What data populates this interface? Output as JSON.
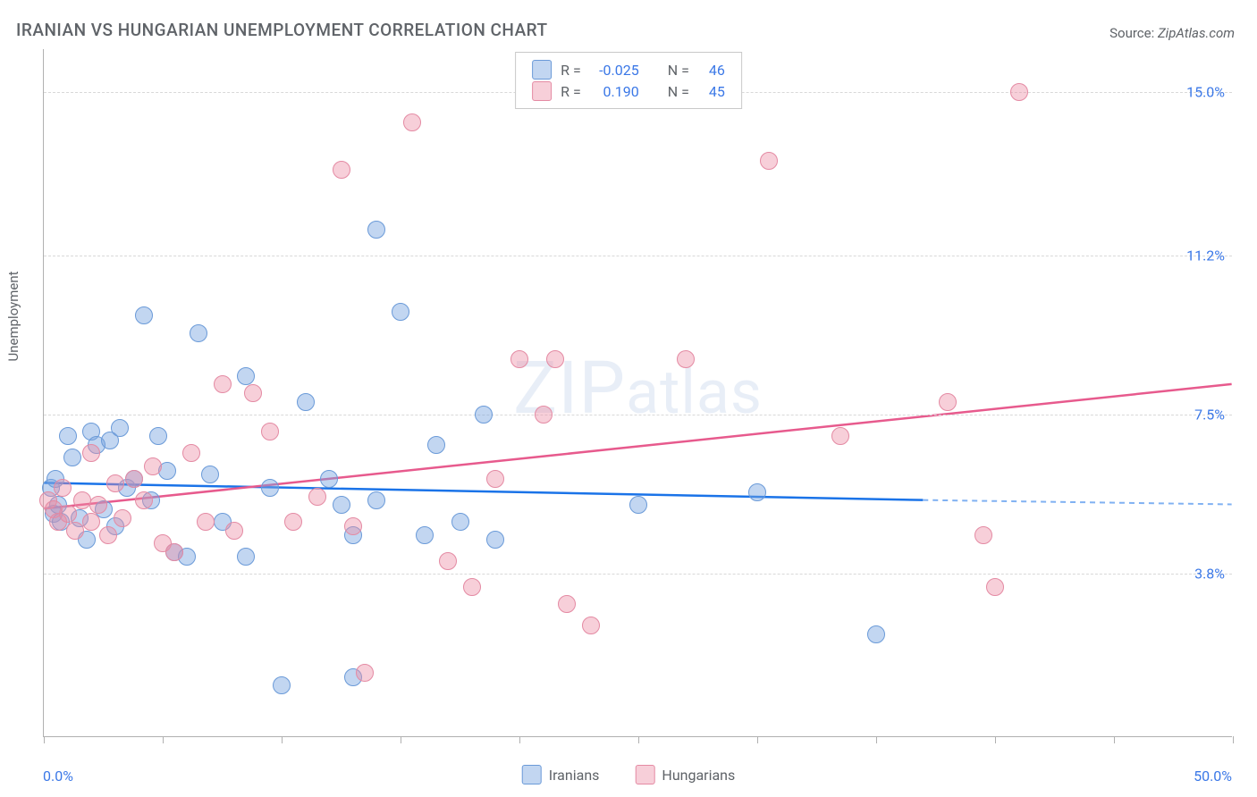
{
  "title": "IRANIAN VS HUNGARIAN UNEMPLOYMENT CORRELATION CHART",
  "source_prefix": "Source: ",
  "source_name": "ZipAtlas.com",
  "y_axis_label": "Unemployment",
  "watermark_big": "ZIP",
  "watermark_small": "atlas",
  "chart": {
    "type": "scatter",
    "xlim": [
      0,
      50
    ],
    "ylim": [
      0,
      16
    ],
    "x_tick_positions": [
      0,
      5,
      10,
      15,
      20,
      25,
      30,
      35,
      40,
      45,
      50
    ],
    "y_gridlines": [
      3.8,
      7.5,
      11.2,
      15.0
    ],
    "y_tick_labels": [
      "3.8%",
      "7.5%",
      "11.2%",
      "15.0%"
    ],
    "x_min_label": "0.0%",
    "x_max_label": "50.0%",
    "background_color": "#ffffff",
    "grid_color": "#d8d8d8",
    "point_radius": 10,
    "series": [
      {
        "name": "Iranians",
        "fill_color": "rgba(120,165,225,0.45)",
        "stroke_color": "#6a9ad8",
        "line_color": "#1a73e8",
        "R": "-0.025",
        "N": "46",
        "trend": {
          "x1": 0,
          "y1": 5.9,
          "x2": 37,
          "y2": 5.5,
          "dash_x1": 37,
          "dash_y1": 5.5,
          "dash_x2": 50,
          "dash_y2": 5.4
        },
        "points": [
          [
            0.3,
            5.8
          ],
          [
            0.4,
            5.2
          ],
          [
            0.5,
            6.0
          ],
          [
            0.6,
            5.4
          ],
          [
            0.7,
            5.0
          ],
          [
            1.0,
            7.0
          ],
          [
            1.2,
            6.5
          ],
          [
            1.5,
            5.1
          ],
          [
            1.8,
            4.6
          ],
          [
            2.0,
            7.1
          ],
          [
            2.2,
            6.8
          ],
          [
            2.5,
            5.3
          ],
          [
            2.8,
            6.9
          ],
          [
            3.0,
            4.9
          ],
          [
            3.2,
            7.2
          ],
          [
            3.5,
            5.8
          ],
          [
            3.8,
            6.0
          ],
          [
            4.2,
            9.8
          ],
          [
            4.5,
            5.5
          ],
          [
            4.8,
            7.0
          ],
          [
            5.2,
            6.2
          ],
          [
            5.5,
            4.3
          ],
          [
            6.0,
            4.2
          ],
          [
            6.5,
            9.4
          ],
          [
            7.0,
            6.1
          ],
          [
            7.5,
            5.0
          ],
          [
            8.5,
            8.4
          ],
          [
            8.5,
            4.2
          ],
          [
            9.5,
            5.8
          ],
          [
            10.0,
            1.2
          ],
          [
            11.0,
            7.8
          ],
          [
            12.0,
            6.0
          ],
          [
            12.5,
            5.4
          ],
          [
            13.0,
            4.7
          ],
          [
            13.0,
            1.4
          ],
          [
            14.0,
            11.8
          ],
          [
            14.0,
            5.5
          ],
          [
            15.0,
            9.9
          ],
          [
            16.0,
            4.7
          ],
          [
            16.5,
            6.8
          ],
          [
            17.5,
            5.0
          ],
          [
            18.5,
            7.5
          ],
          [
            19.0,
            4.6
          ],
          [
            25.0,
            5.4
          ],
          [
            30.0,
            5.7
          ],
          [
            35.0,
            2.4
          ]
        ]
      },
      {
        "name": "Hungarians",
        "fill_color": "rgba(235,140,165,0.42)",
        "stroke_color": "#e48aa3",
        "line_color": "#e75a8d",
        "R": "0.190",
        "N": "45",
        "trend": {
          "x1": 0,
          "y1": 5.3,
          "x2": 50,
          "y2": 8.2
        },
        "points": [
          [
            0.2,
            5.5
          ],
          [
            0.4,
            5.3
          ],
          [
            0.6,
            5.0
          ],
          [
            0.8,
            5.8
          ],
          [
            1.0,
            5.2
          ],
          [
            1.3,
            4.8
          ],
          [
            1.6,
            5.5
          ],
          [
            2.0,
            5.0
          ],
          [
            2.0,
            6.6
          ],
          [
            2.3,
            5.4
          ],
          [
            2.7,
            4.7
          ],
          [
            3.0,
            5.9
          ],
          [
            3.3,
            5.1
          ],
          [
            3.8,
            6.0
          ],
          [
            4.2,
            5.5
          ],
          [
            4.6,
            6.3
          ],
          [
            5.0,
            4.5
          ],
          [
            5.5,
            4.3
          ],
          [
            6.2,
            6.6
          ],
          [
            6.8,
            5.0
          ],
          [
            7.5,
            8.2
          ],
          [
            8.0,
            4.8
          ],
          [
            8.8,
            8.0
          ],
          [
            9.5,
            7.1
          ],
          [
            10.5,
            5.0
          ],
          [
            11.5,
            5.6
          ],
          [
            12.5,
            13.2
          ],
          [
            13.0,
            4.9
          ],
          [
            13.5,
            1.5
          ],
          [
            15.5,
            14.3
          ],
          [
            17.0,
            4.1
          ],
          [
            18.0,
            3.5
          ],
          [
            19.0,
            6.0
          ],
          [
            20.0,
            8.8
          ],
          [
            21.0,
            7.5
          ],
          [
            21.5,
            8.8
          ],
          [
            22.0,
            3.1
          ],
          [
            23.0,
            2.6
          ],
          [
            27.0,
            8.8
          ],
          [
            30.5,
            13.4
          ],
          [
            33.5,
            7.0
          ],
          [
            38.0,
            7.8
          ],
          [
            39.5,
            4.7
          ],
          [
            40.0,
            3.5
          ],
          [
            41.0,
            15.0
          ]
        ]
      }
    ]
  },
  "legend_top_stats": [
    {
      "r_label": "R =",
      "n_label": "N ="
    },
    {
      "r_label": "R =",
      "n_label": "N ="
    }
  ],
  "legend_bottom": [
    "Iranians",
    "Hungarians"
  ]
}
